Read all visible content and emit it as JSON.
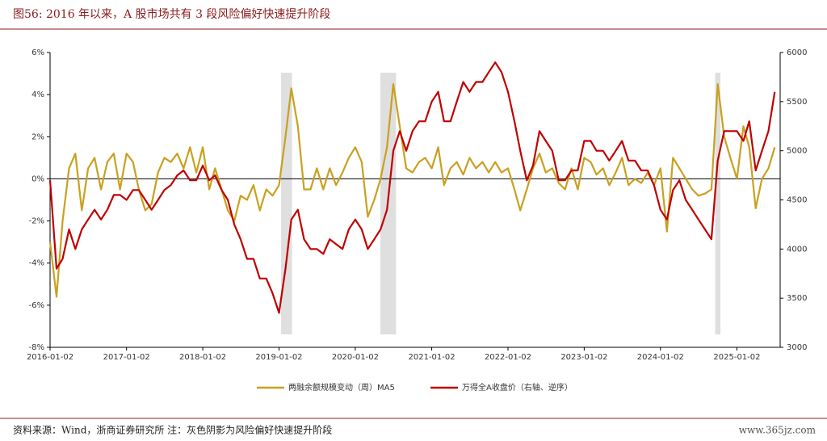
{
  "chart_data": {
    "type": "line",
    "title": "图56:  2016 年以来，A 股市场共有 3 段风险偏好快速提升阶段",
    "source": "资料来源：Wind，浙商证券研究所  注：灰色阴影为风险偏好快速提升阶段",
    "watermark": "www.365jz.com",
    "x": [
      "2016-01-02",
      "2016-02-02",
      "2016-03-02",
      "2016-04-02",
      "2016-05-02",
      "2016-06-02",
      "2016-07-02",
      "2016-08-02",
      "2016-09-02",
      "2016-10-02",
      "2016-11-02",
      "2016-12-02",
      "2017-01-02",
      "2017-02-02",
      "2017-03-02",
      "2017-04-02",
      "2017-05-02",
      "2017-06-02",
      "2017-07-02",
      "2017-08-02",
      "2017-09-02",
      "2017-10-02",
      "2017-11-02",
      "2017-12-02",
      "2018-01-02",
      "2018-02-02",
      "2018-03-02",
      "2018-04-02",
      "2018-05-02",
      "2018-06-02",
      "2018-07-02",
      "2018-08-02",
      "2018-09-02",
      "2018-10-02",
      "2018-11-02",
      "2018-12-02",
      "2019-01-02",
      "2019-02-02",
      "2019-03-02",
      "2019-04-02",
      "2019-05-02",
      "2019-06-02",
      "2019-07-02",
      "2019-08-02",
      "2019-09-02",
      "2019-10-02",
      "2019-11-02",
      "2019-12-02",
      "2020-01-02",
      "2020-02-02",
      "2020-03-02",
      "2020-04-02",
      "2020-05-02",
      "2020-06-02",
      "2020-07-02",
      "2020-08-02",
      "2020-09-02",
      "2020-10-02",
      "2020-11-02",
      "2020-12-02",
      "2021-01-02",
      "2021-02-02",
      "2021-03-02",
      "2021-04-02",
      "2021-05-02",
      "2021-06-02",
      "2021-07-02",
      "2021-08-02",
      "2021-09-02",
      "2021-10-02",
      "2021-11-02",
      "2021-12-02",
      "2022-01-02",
      "2022-02-02",
      "2022-03-02",
      "2022-04-02",
      "2022-05-02",
      "2022-06-02",
      "2022-07-02",
      "2022-08-02",
      "2022-09-02",
      "2022-10-02",
      "2022-11-02",
      "2022-12-02",
      "2023-01-02",
      "2023-02-02",
      "2023-03-02",
      "2023-04-02",
      "2023-05-02",
      "2023-06-02",
      "2023-07-02",
      "2023-08-02",
      "2023-09-02",
      "2023-10-02",
      "2023-11-02",
      "2023-12-02",
      "2024-01-02",
      "2024-02-02",
      "2024-03-02",
      "2024-04-02",
      "2024-05-02",
      "2024-06-02",
      "2024-07-02",
      "2024-08-02",
      "2024-09-02",
      "2024-10-02",
      "2024-11-02",
      "2024-12-02",
      "2025-01-02",
      "2025-02-02",
      "2025-03-02",
      "2025-04-02",
      "2025-05-02",
      "2025-06-02",
      "2025-07-02"
    ],
    "series": [
      {
        "name": "两融余额规模变动（周）MA5",
        "color": "#c9a020",
        "axis": "y",
        "values": [
          -3,
          -5.6,
          -2,
          0.5,
          1.2,
          -1.5,
          0.5,
          1,
          -0.5,
          0.8,
          1.2,
          -0.5,
          1.2,
          0.8,
          -0.5,
          -1.5,
          -1.2,
          0.3,
          1,
          0.8,
          1.2,
          0.5,
          1.5,
          0.3,
          1.5,
          -0.5,
          0.5,
          -0.5,
          -1.5,
          -2,
          -0.8,
          -1,
          -0.3,
          -1.5,
          -0.5,
          -0.8,
          -0.3,
          2,
          4.3,
          2.5,
          -0.5,
          -0.5,
          0.5,
          -0.5,
          0.5,
          -0.3,
          0.3,
          1,
          1.5,
          0.8,
          -1.8,
          -1,
          0,
          1.5,
          4.5,
          2.5,
          0.5,
          0.3,
          0.8,
          1,
          0.5,
          1.5,
          -0.3,
          0.5,
          0.8,
          0.2,
          1,
          0.5,
          0.8,
          0.3,
          0.8,
          0.3,
          0.5,
          -0.5,
          -1.5,
          -0.5,
          0.5,
          1.2,
          0.3,
          0.5,
          -0.2,
          -0.5,
          0.5,
          -0.5,
          1,
          0.8,
          0.2,
          0.5,
          -0.3,
          0.3,
          1,
          -0.3,
          0,
          -0.2,
          0.3,
          -0.3,
          0.5,
          -2.5,
          1,
          0.5,
          0,
          -0.5,
          -0.8,
          -0.7,
          -0.5,
          4.5,
          2,
          1,
          0,
          2.5,
          1.5,
          -1.4,
          0,
          0.5,
          1.5
        ]
      },
      {
        "name": "万得全A收盘价（右轴、逆序）",
        "color": "#c00000",
        "axis": "y2",
        "values": [
          4700,
          3800,
          3900,
          4200,
          4000,
          4200,
          4300,
          4400,
          4300,
          4400,
          4550,
          4550,
          4500,
          4600,
          4600,
          4500,
          4400,
          4500,
          4600,
          4650,
          4750,
          4800,
          4700,
          4700,
          4850,
          4700,
          4750,
          4600,
          4500,
          4250,
          4100,
          3900,
          3900,
          3700,
          3700,
          3550,
          3350,
          3800,
          4300,
          4400,
          4100,
          4000,
          4000,
          3950,
          4100,
          4050,
          4000,
          4200,
          4300,
          4200,
          4000,
          4100,
          4200,
          4400,
          5000,
          5200,
          5000,
          5200,
          5300,
          5300,
          5500,
          5600,
          5300,
          5300,
          5500,
          5700,
          5600,
          5700,
          5700,
          5800,
          5900,
          5800,
          5600,
          5300,
          5000,
          4700,
          4850,
          5200,
          5100,
          5000,
          4700,
          4700,
          4800,
          4800,
          5100,
          5100,
          5000,
          5000,
          4900,
          5000,
          5100,
          4900,
          4900,
          4800,
          4800,
          4650,
          4400,
          4300,
          4600,
          4700,
          4500,
          4400,
          4300,
          4200,
          4100,
          4900,
          5200,
          5200,
          5200,
          5100,
          5300,
          4800,
          5000,
          5200,
          5600
        ]
      }
    ],
    "shaded_periods": [
      [
        "2019-01-12",
        "2019-03-05"
      ],
      [
        "2020-05-01",
        "2020-07-15"
      ],
      [
        "2024-09-20",
        "2024-10-15"
      ]
    ],
    "xlim": [
      "2016-01-02",
      "2025-07-28"
    ],
    "xticks": [
      "2016-01-02",
      "2017-01-02",
      "2018-01-02",
      "2019-01-02",
      "2020-01-02",
      "2021-01-02",
      "2022-01-02",
      "2023-01-02",
      "2024-01-02",
      "2025-01-02"
    ],
    "ylim": [
      -8,
      6
    ],
    "yticks": [
      {
        "value": -8,
        "label": "-8%"
      },
      {
        "value": -6,
        "label": "-6%"
      },
      {
        "value": -4,
        "label": "-4%"
      },
      {
        "value": -2,
        "label": "-2%"
      },
      {
        "value": 0,
        "label": "0%"
      },
      {
        "value": 2,
        "label": "2%"
      },
      {
        "value": 4,
        "label": "4%"
      },
      {
        "value": 6,
        "label": "6%"
      }
    ],
    "y2lim": [
      3000,
      6000
    ],
    "y2ticks": [
      3000,
      3500,
      4000,
      4500,
      5000,
      5500,
      6000
    ]
  }
}
